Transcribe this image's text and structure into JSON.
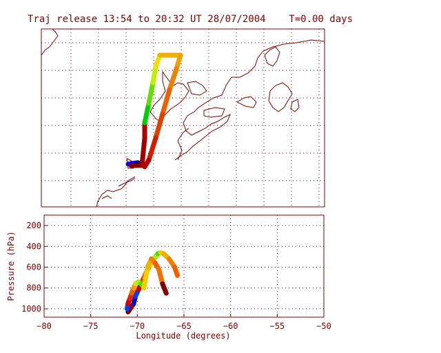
{
  "title": "Traj release 13:54 to 20:32 UT 28/07/2004    T=0.00 days",
  "colors": {
    "frame": "#800000",
    "grid": "#800000",
    "coast": "#800000",
    "background": "#ffffff"
  },
  "lower_panel": {
    "ylabel": "Pressure  (hPa)",
    "xlabel": "Longitude  (degrees)",
    "y_ticks": [
      "200",
      "400",
      "600",
      "800",
      "1000"
    ],
    "x_ticks": [
      "−80",
      "−75",
      "−70",
      "−65",
      "−60",
      "−55",
      "−50"
    ]
  },
  "chart_data": {
    "type": "line",
    "title": "Traj release 13:54 to 20:32 UT 28/07/2004    T=0.00 days",
    "xlabel": "Longitude  (degrees)",
    "ylabel": "Pressure  (hPa)",
    "xlim": [
      -80,
      -50
    ],
    "ylim": [
      1080,
      100
    ],
    "series": [
      {
        "color_scale": "rainbow",
        "lon": [
          -71.0,
          -70.7,
          -70.4,
          -70.2,
          -69.9,
          -69.6,
          -69.3,
          -69.0,
          -68.6,
          -68.2,
          -67.8,
          -67.5,
          -67.2,
          -66.6,
          -66.0,
          -65.7
        ],
        "pressure": [
          1030,
          990,
          950,
          880,
          820,
          760,
          700,
          640,
          580,
          520,
          470,
          460,
          470,
          520,
          600,
          680
        ]
      },
      {
        "color_scale": "rainbow",
        "lon": [
          -71.1,
          -71.0,
          -70.8,
          -70.6,
          -70.4,
          -70.2,
          -69.9,
          -69.6,
          -69.3,
          -68.9,
          -68.5,
          -68.1,
          -67.7,
          -67.3,
          -66.9
        ],
        "pressure": [
          1000,
          950,
          900,
          850,
          800,
          760,
          740,
          760,
          800,
          600,
          520,
          560,
          620,
          760,
          850
        ]
      }
    ]
  }
}
